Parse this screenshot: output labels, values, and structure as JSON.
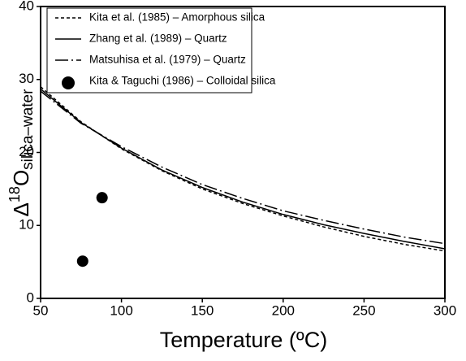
{
  "chart_data": {
    "type": "line",
    "xlabel": "Temperature (ºC)",
    "ylabel_parts": [
      "Δ",
      "18",
      "O",
      "silica–water"
    ],
    "xlim": [
      50,
      300
    ],
    "xticks": [
      50,
      100,
      150,
      200,
      250,
      300
    ],
    "ylim": [
      0,
      40
    ],
    "yticks": [
      0,
      10,
      20,
      30,
      40
    ],
    "legend": "top-left",
    "series": [
      {
        "name": "Kita et al. (1985) – Amorphous silica",
        "type": "line",
        "style": "dashed",
        "color": "#000000",
        "x": [
          50,
          75,
          100,
          125,
          150,
          175,
          200,
          225,
          250,
          275,
          300
        ],
        "values": [
          29.0,
          24.2,
          20.5,
          17.5,
          15.0,
          13.0,
          11.3,
          9.8,
          8.5,
          7.4,
          6.5
        ]
      },
      {
        "name": "Zhang et al. (1989) – Quartz",
        "type": "line",
        "style": "solid",
        "color": "#000000",
        "x": [
          50,
          75,
          100,
          125,
          150,
          175,
          200,
          225,
          250,
          275,
          300
        ],
        "values": [
          28.7,
          24.1,
          20.6,
          17.6,
          15.2,
          13.2,
          11.5,
          10.1,
          8.9,
          7.8,
          6.8
        ]
      },
      {
        "name": "Matsuhisa et al. (1979) – Quartz",
        "type": "line",
        "style": "dashdot",
        "color": "#000000",
        "x": [
          50,
          75,
          100,
          125,
          150,
          175,
          200,
          225,
          250,
          275,
          300
        ],
        "values": [
          28.4,
          24.0,
          20.8,
          18.0,
          15.6,
          13.7,
          12.0,
          10.7,
          9.5,
          8.4,
          7.5
        ]
      },
      {
        "name": "Kita & Taguchi (1986) – Colloidal silica",
        "type": "scatter",
        "color": "#000000",
        "x": [
          76,
          88
        ],
        "values": [
          5.1,
          13.8
        ]
      }
    ]
  }
}
